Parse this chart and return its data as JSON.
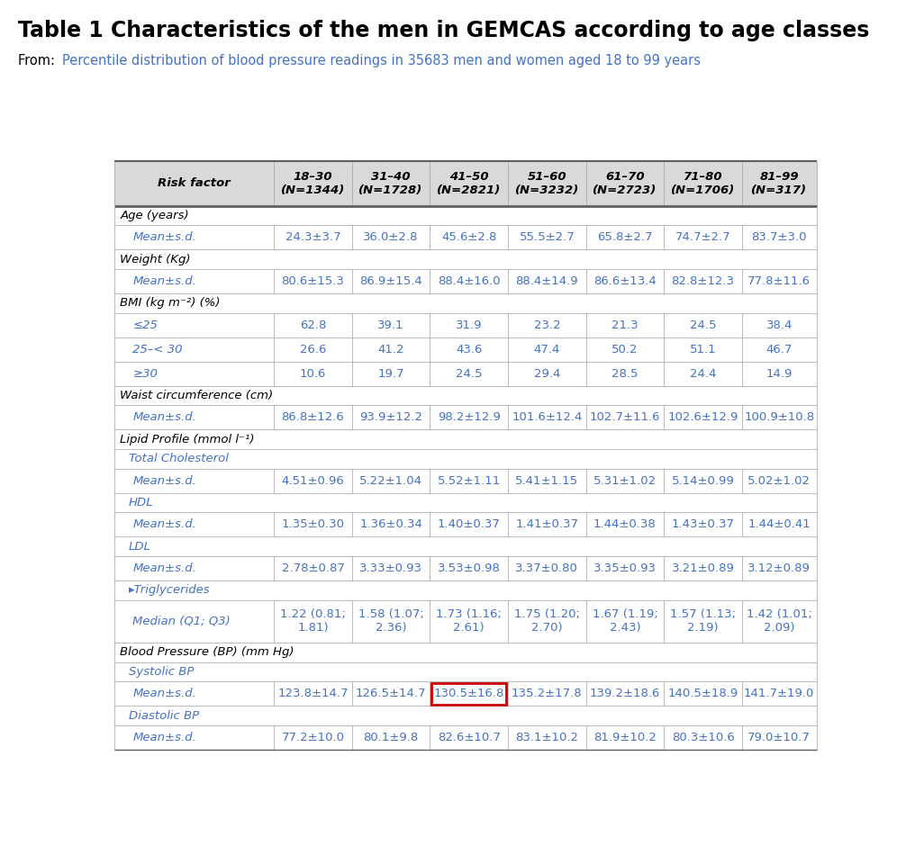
{
  "title": "Table 1 Characteristics of the men in GEMCAS according to age classes",
  "subtitle_prefix": "From: ",
  "subtitle": "Percentile distribution of blood pressure readings in 35683 men and women aged 18 to 99 years",
  "col_headers": [
    "Risk factor",
    "18–30\n(N=1344)",
    "31–40\n(N=1728)",
    "41–50\n(N=2821)",
    "51–60\n(N=3232)",
    "61–70\n(N=2723)",
    "71–80\n(N=1706)",
    "81–99\n(N=317)"
  ],
  "rows": [
    {
      "label": "Age (years)",
      "type": "section",
      "indent": 0
    },
    {
      "label": "Mean±s.d.",
      "type": "data",
      "indent": 1,
      "values": [
        "24.3±3.7",
        "36.0±2.8",
        "45.6±2.8",
        "55.5±2.7",
        "65.8±2.7",
        "74.7±2.7",
        "83.7±3.0"
      ]
    },
    {
      "label": "Weight (Kg)",
      "type": "section",
      "indent": 0
    },
    {
      "label": "Mean±s.d.",
      "type": "data",
      "indent": 1,
      "values": [
        "80.6±15.3",
        "86.9±15.4",
        "88.4±16.0",
        "88.4±14.9",
        "86.6±13.4",
        "82.8±12.3",
        "77.8±11.6"
      ]
    },
    {
      "label": "BMI (kg m⁻²) (%)",
      "type": "section",
      "indent": 0
    },
    {
      "label": "≤25",
      "type": "data",
      "indent": 1,
      "values": [
        "62.8",
        "39.1",
        "31.9",
        "23.2",
        "21.3",
        "24.5",
        "38.4"
      ]
    },
    {
      "label": "25–< 30",
      "type": "data",
      "indent": 1,
      "values": [
        "26.6",
        "41.2",
        "43.6",
        "47.4",
        "50.2",
        "51.1",
        "46.7"
      ]
    },
    {
      "label": "≥30",
      "type": "data",
      "indent": 1,
      "values": [
        "10.6",
        "19.7",
        "24.5",
        "29.4",
        "28.5",
        "24.4",
        "14.9"
      ]
    },
    {
      "label": "Waist circumference (cm)",
      "type": "section",
      "indent": 0
    },
    {
      "label": "Mean±s.d.",
      "type": "data",
      "indent": 1,
      "values": [
        "86.8±12.6",
        "93.9±12.2",
        "98.2±12.9",
        "101.6±12.4",
        "102.7±11.6",
        "102.6±12.9",
        "100.9±10.8"
      ]
    },
    {
      "label": "Lipid Profile (mmol l⁻¹)",
      "type": "section",
      "indent": 0
    },
    {
      "label": "Total Cholesterol",
      "type": "subsection",
      "indent": 1
    },
    {
      "label": "Mean±s.d.",
      "type": "data",
      "indent": 2,
      "values": [
        "4.51±0.96",
        "5.22±1.04",
        "5.52±1.11",
        "5.41±1.15",
        "5.31±1.02",
        "5.14±0.99",
        "5.02±1.02"
      ]
    },
    {
      "label": "HDL",
      "type": "subsection",
      "indent": 1
    },
    {
      "label": "Mean±s.d.",
      "type": "data",
      "indent": 2,
      "values": [
        "1.35±0.30",
        "1.36±0.34",
        "1.40±0.37",
        "1.41±0.37",
        "1.44±0.38",
        "1.43±0.37",
        "1.44±0.41"
      ]
    },
    {
      "label": "LDL",
      "type": "subsection",
      "indent": 1
    },
    {
      "label": "Mean±s.d.",
      "type": "data",
      "indent": 2,
      "values": [
        "2.78±0.87",
        "3.33±0.93",
        "3.53±0.98",
        "3.37±0.80",
        "3.35±0.93",
        "3.21±0.89",
        "3.12±0.89"
      ]
    },
    {
      "label": "▸Triglycerides",
      "type": "subsection",
      "indent": 1
    },
    {
      "label": "Median (Q1; Q3)",
      "type": "data_multiline",
      "indent": 2,
      "values": [
        "1.22 (0.81;\n1.81)",
        "1.58 (1.07;\n2.36)",
        "1.73 (1.16;\n2.61)",
        "1.75 (1.20;\n2.70)",
        "1.67 (1.19;\n2.43)",
        "1.57 (1.13;\n2.19)",
        "1.42 (1.01;\n2.09)"
      ]
    },
    {
      "label": "Blood Pressure (BP) (mm Hg)",
      "type": "section",
      "indent": 0
    },
    {
      "label": "Systolic BP",
      "type": "subsection",
      "indent": 1
    },
    {
      "label": "Mean±s.d.",
      "type": "data",
      "indent": 2,
      "values": [
        "123.8±14.7",
        "126.5±14.7",
        "130.5±16.8",
        "135.2±17.8",
        "139.2±18.6",
        "140.5±18.9",
        "141.7±19.0"
      ],
      "highlight_col": 2
    },
    {
      "label": "Diastolic BP",
      "type": "subsection",
      "indent": 1
    },
    {
      "label": "Mean±s.d.",
      "type": "data",
      "indent": 2,
      "values": [
        "77.2±10.0",
        "80.1±9.8",
        "82.6±10.7",
        "83.1±10.2",
        "81.9±10.2",
        "80.3±10.6",
        "79.0±10.7"
      ]
    }
  ],
  "colors": {
    "title": "#000000",
    "subtitle": "#4472C4",
    "header_bg": "#D9D9D9",
    "section_bg": "#FFFFFF",
    "data_text": "#4472C4",
    "section_text": "#000000",
    "border": "#A0A0A0",
    "thick_border": "#606060",
    "highlight_border": "#CC0000",
    "subsection_text": "#4472C4"
  }
}
